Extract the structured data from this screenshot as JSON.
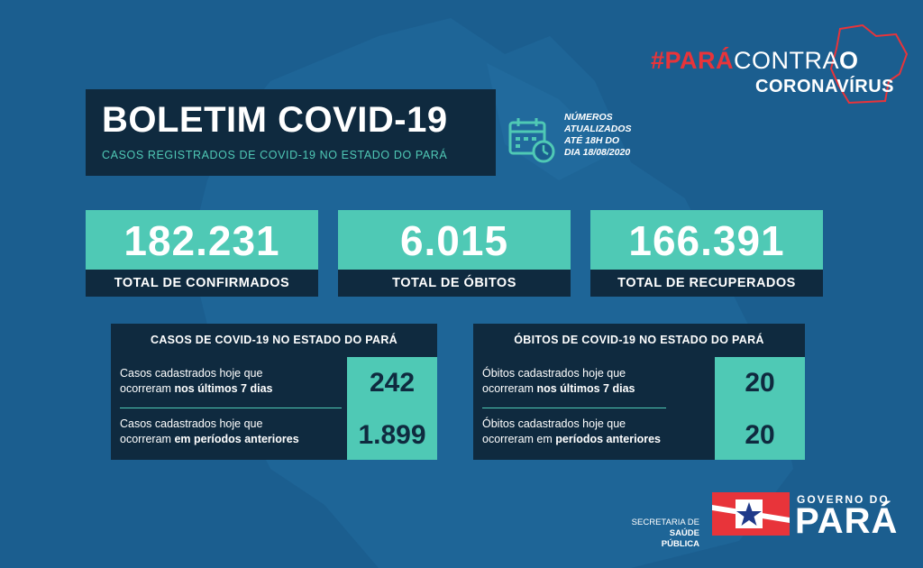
{
  "campaign": {
    "hash": "#",
    "para": "PARÁ",
    "contra": "CONTRA",
    "o": "O",
    "line2": "CORONAVÍRUS"
  },
  "title": {
    "heading": "BOLETIM COVID-19",
    "subtitle": "CASOS REGISTRADOS DE COVID-19 NO ESTADO DO PARÁ"
  },
  "updated": {
    "line1": "NÚMEROS",
    "line2": "ATUALIZADOS",
    "line3": "ATÉ 18H DO",
    "line4": "DIA 18/08/2020"
  },
  "stats": [
    {
      "value": "182.231",
      "label": "TOTAL DE CONFIRMADOS"
    },
    {
      "value": "6.015",
      "label": "TOTAL DE ÓBITOS"
    },
    {
      "value": "166.391",
      "label": "TOTAL DE RECUPERADOS"
    }
  ],
  "cases": {
    "header": "CASOS DE COVID-19 NO ESTADO DO PARÁ",
    "row1": {
      "text": "Casos cadastrados hoje que",
      "text2": "ocorreram ",
      "bold": "nos últimos 7 dias",
      "value": "242"
    },
    "row2": {
      "text": "Casos cadastrados hoje que",
      "text2": "ocorreram ",
      "bold": "em períodos anteriores",
      "value": "1.899"
    }
  },
  "deaths": {
    "header": "ÓBITOS DE COVID-19 NO ESTADO DO PARÁ",
    "row1": {
      "text": "Óbitos cadastrados hoje que",
      "text2": "ocorreram ",
      "bold": "nos últimos 7 dias",
      "value": "20"
    },
    "row2": {
      "text": "Óbitos cadastrados hoje que",
      "text2": "ocorreram em ",
      "bold": "períodos anteriores",
      "value": "20"
    }
  },
  "footer": {
    "secretaria_line1": "SECRETARIA DE",
    "secretaria_line2": "SAÚDE PÚBLICA",
    "gov_line1": "GOVERNO DO",
    "gov_line2": "PARÁ"
  },
  "colors": {
    "background": "#1b5e8f",
    "dark": "#0f2a3f",
    "teal": "#4fc9b5",
    "red": "#e8343a"
  },
  "icons": [
    "calendar-clock-icon",
    "para-map-outline-icon",
    "para-flag-star-icon"
  ]
}
